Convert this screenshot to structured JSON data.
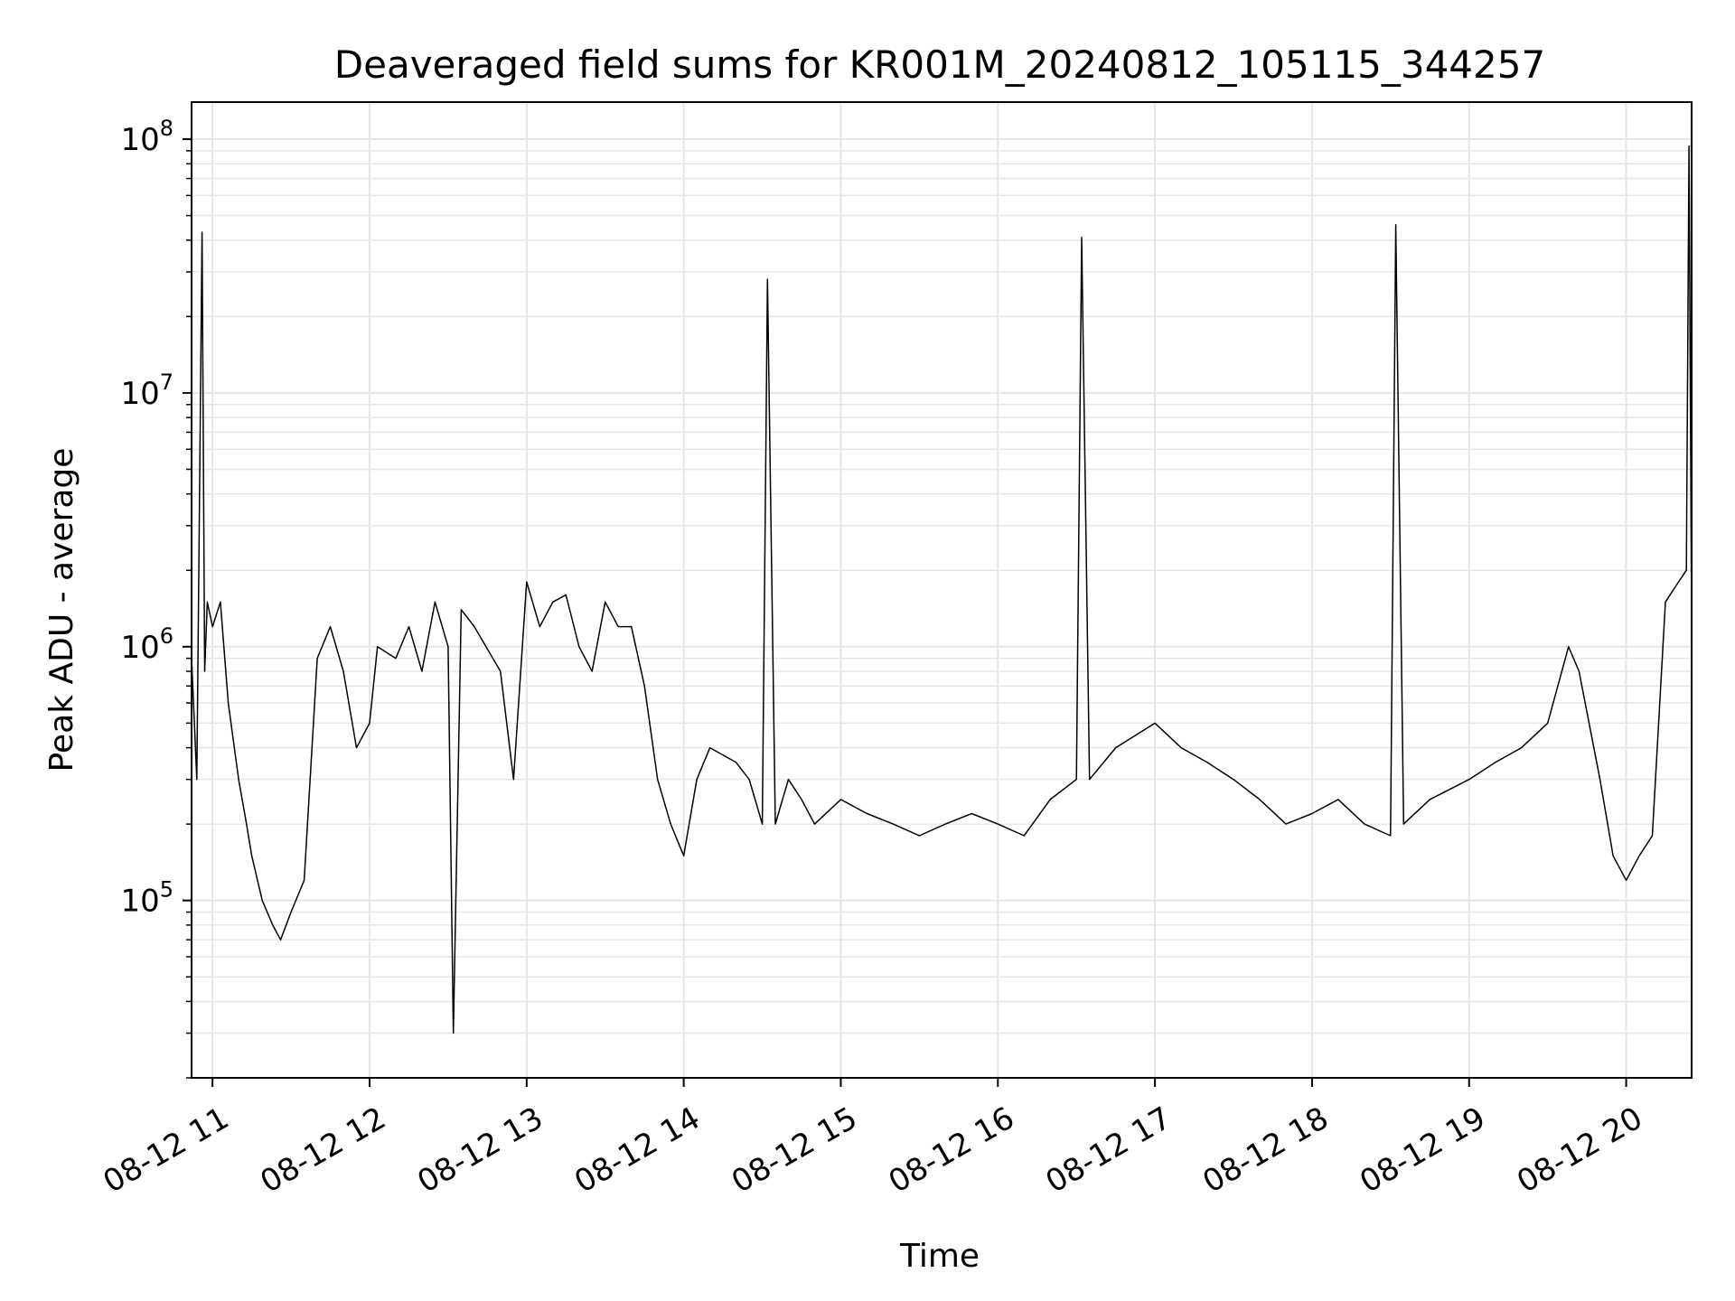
{
  "chart_data": {
    "type": "line",
    "title": "Deaveraged field sums for KR001M_20240812_105115_344257",
    "xlabel": "Time",
    "ylabel": "Peak ADU - average",
    "xlim": [
      "2024-08-12 10:52",
      "2024-08-12 20:25"
    ],
    "yscale": "log",
    "ylim": [
      20000,
      140000000
    ],
    "grid": true,
    "line_color": "#000000",
    "grid_color": "#e6e6e6",
    "x_ticks": [
      {
        "value": "2024-08-12 11:00",
        "label": "08-12 11"
      },
      {
        "value": "2024-08-12 12:00",
        "label": "08-12 12"
      },
      {
        "value": "2024-08-12 13:00",
        "label": "08-12 13"
      },
      {
        "value": "2024-08-12 14:00",
        "label": "08-12 14"
      },
      {
        "value": "2024-08-12 15:00",
        "label": "08-12 15"
      },
      {
        "value": "2024-08-12 16:00",
        "label": "08-12 16"
      },
      {
        "value": "2024-08-12 17:00",
        "label": "08-12 17"
      },
      {
        "value": "2024-08-12 18:00",
        "label": "08-12 18"
      },
      {
        "value": "2024-08-12 19:00",
        "label": "08-12 19"
      },
      {
        "value": "2024-08-12 20:00",
        "label": "08-12 20"
      }
    ],
    "y_ticks": [
      {
        "value": 100000,
        "base": "10",
        "exp": "5"
      },
      {
        "value": 1000000,
        "base": "10",
        "exp": "6"
      },
      {
        "value": 10000000,
        "base": "10",
        "exp": "7"
      },
      {
        "value": 100000000,
        "base": "10",
        "exp": "8"
      }
    ],
    "series": [
      {
        "x": [
          "2024-08-12 10:52",
          "2024-08-12 10:54",
          "2024-08-12 10:56",
          "2024-08-12 10:57",
          "2024-08-12 10:58",
          "2024-08-12 11:00",
          "2024-08-12 11:03",
          "2024-08-12 11:06",
          "2024-08-12 11:10",
          "2024-08-12 11:13",
          "2024-08-12 11:15",
          "2024-08-12 11:19",
          "2024-08-12 11:23",
          "2024-08-12 11:26",
          "2024-08-12 11:30",
          "2024-08-12 11:35",
          "2024-08-12 11:40",
          "2024-08-12 11:45",
          "2024-08-12 11:50",
          "2024-08-12 11:55",
          "2024-08-12 12:00",
          "2024-08-12 12:03",
          "2024-08-12 12:10",
          "2024-08-12 12:15",
          "2024-08-12 12:20",
          "2024-08-12 12:25",
          "2024-08-12 12:30",
          "2024-08-12 12:32",
          "2024-08-12 12:35",
          "2024-08-12 12:40",
          "2024-08-12 12:50",
          "2024-08-12 12:55",
          "2024-08-12 13:00",
          "2024-08-12 13:05",
          "2024-08-12 13:10",
          "2024-08-12 13:15",
          "2024-08-12 13:20",
          "2024-08-12 13:25",
          "2024-08-12 13:30",
          "2024-08-12 13:35",
          "2024-08-12 13:40",
          "2024-08-12 13:45",
          "2024-08-12 13:50",
          "2024-08-12 13:55",
          "2024-08-12 14:00",
          "2024-08-12 14:05",
          "2024-08-12 14:10",
          "2024-08-12 14:20",
          "2024-08-12 14:25",
          "2024-08-12 14:30",
          "2024-08-12 14:32",
          "2024-08-12 14:35",
          "2024-08-12 14:40",
          "2024-08-12 14:45",
          "2024-08-12 14:50",
          "2024-08-12 15:00",
          "2024-08-12 15:10",
          "2024-08-12 15:20",
          "2024-08-12 15:30",
          "2024-08-12 15:40",
          "2024-08-12 15:50",
          "2024-08-12 16:00",
          "2024-08-12 16:10",
          "2024-08-12 16:20",
          "2024-08-12 16:30",
          "2024-08-12 16:32",
          "2024-08-12 16:35",
          "2024-08-12 16:45",
          "2024-08-12 17:00",
          "2024-08-12 17:10",
          "2024-08-12 17:20",
          "2024-08-12 17:30",
          "2024-08-12 17:40",
          "2024-08-12 17:50",
          "2024-08-12 18:00",
          "2024-08-12 18:10",
          "2024-08-12 18:20",
          "2024-08-12 18:30",
          "2024-08-12 18:32",
          "2024-08-12 18:35",
          "2024-08-12 18:45",
          "2024-08-12 19:00",
          "2024-08-12 19:10",
          "2024-08-12 19:20",
          "2024-08-12 19:30",
          "2024-08-12 19:38",
          "2024-08-12 19:42",
          "2024-08-12 19:50",
          "2024-08-12 19:55",
          "2024-08-12 20:00",
          "2024-08-12 20:05",
          "2024-08-12 20:10",
          "2024-08-12 20:15",
          "2024-08-12 20:20",
          "2024-08-12 20:23",
          "2024-08-12 20:24",
          "2024-08-12 20:25"
        ],
        "y": [
          900000,
          300000,
          43000000,
          800000,
          1500000,
          1200000,
          1500000,
          600000,
          300000,
          200000,
          150000,
          100000,
          80000,
          70000,
          90000,
          120000,
          900000,
          1200000,
          800000,
          400000,
          500000,
          1000000,
          900000,
          1200000,
          800000,
          1500000,
          1000000,
          30000,
          1400000,
          1200000,
          800000,
          300000,
          1800000,
          1200000,
          1500000,
          1600000,
          1000000,
          800000,
          1500000,
          1200000,
          1200000,
          700000,
          300000,
          200000,
          150000,
          300000,
          400000,
          350000,
          300000,
          200000,
          28000000,
          200000,
          300000,
          250000,
          200000,
          250000,
          220000,
          200000,
          180000,
          200000,
          220000,
          200000,
          180000,
          250000,
          300000,
          41000000,
          300000,
          400000,
          500000,
          400000,
          350000,
          300000,
          250000,
          200000,
          220000,
          250000,
          200000,
          180000,
          46000000,
          200000,
          250000,
          300000,
          350000,
          400000,
          500000,
          1000000,
          800000,
          300000,
          150000,
          120000,
          150000,
          180000,
          1500000,
          1800000,
          2000000,
          94000000,
          1200000
        ]
      }
    ]
  }
}
